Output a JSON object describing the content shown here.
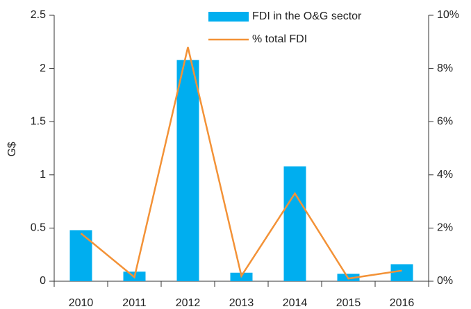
{
  "chart_data": {
    "type": "bar",
    "ylabel": "G$",
    "categories": [
      "2010",
      "2011",
      "2012",
      "2013",
      "2014",
      "2015",
      "2016"
    ],
    "series": [
      {
        "name": "FDI in the O&G sector",
        "type": "bar",
        "color": "#00aeef",
        "values": [
          0.48,
          0.09,
          2.08,
          0.08,
          1.08,
          0.07,
          0.16
        ]
      },
      {
        "name": "% total FDI",
        "type": "line",
        "axis": "y2",
        "color": "#f39237",
        "values": [
          1.8,
          0.15,
          8.8,
          0.2,
          3.3,
          0.1,
          0.4
        ]
      }
    ],
    "ylim": [
      0,
      2.5
    ],
    "yticks": [
      0,
      0.5,
      1,
      1.5,
      2,
      2.5
    ],
    "y2lim": [
      0,
      10
    ],
    "y2ticks": [
      {
        "value": 0,
        "label": "0%"
      },
      {
        "value": 2,
        "label": "2%"
      },
      {
        "value": 4,
        "label": "4%"
      },
      {
        "value": 6,
        "label": "6%"
      },
      {
        "value": 8,
        "label": "8%"
      },
      {
        "value": 10,
        "label": "10%"
      }
    ],
    "legend": "top"
  }
}
